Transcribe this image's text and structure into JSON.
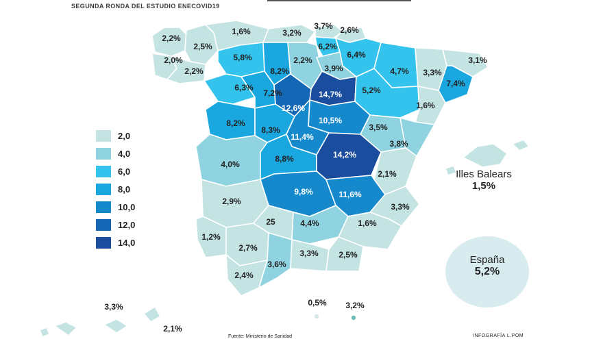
{
  "subtitle": "SEGUNDA RONDA DEL ESTUDIO ENECOVID19",
  "legend": [
    {
      "value": "2,0",
      "color": "#c4e3e3"
    },
    {
      "value": "4,0",
      "color": "#8fd2e0"
    },
    {
      "value": "6,0",
      "color": "#33c3ec"
    },
    {
      "value": "8,0",
      "color": "#1aa7e0"
    },
    {
      "value": "10,0",
      "color": "#1589cc"
    },
    {
      "value": "12,0",
      "color": "#1467b4"
    },
    {
      "value": "14,0",
      "color": "#1b4d9e"
    }
  ],
  "provinces": [
    {
      "name": "A Coruña",
      "value": "2,2%",
      "color": "#c4e3e3"
    },
    {
      "name": "Lugo",
      "value": "2,5%",
      "color": "#c4e3e3"
    },
    {
      "name": "Pontevedra",
      "value": "2,0%",
      "color": "#c4e3e3"
    },
    {
      "name": "Ourense",
      "value": "2,2%",
      "color": "#c4e3e3"
    },
    {
      "name": "Asturias",
      "value": "1,6%",
      "color": "#c4e3e3"
    },
    {
      "name": "Cantabria",
      "value": "3,2%",
      "color": "#c4e3e3"
    },
    {
      "name": "Bizkaia",
      "value": "3,7%",
      "color": "#c4e3e3"
    },
    {
      "name": "Gipuzkoa",
      "value": "2,6%",
      "color": "#c4e3e3"
    },
    {
      "name": "Álava",
      "value": "6,2%",
      "color": "#33c3ec"
    },
    {
      "name": "Navarra",
      "value": "6,4%",
      "color": "#33c3ec"
    },
    {
      "name": "León",
      "value": "5,8%",
      "color": "#33c3ec"
    },
    {
      "name": "Palencia",
      "value": "8,2%",
      "color": "#1aa7e0"
    },
    {
      "name": "Burgos",
      "value": "2,2%",
      "color": "#8fd2e0"
    },
    {
      "name": "La Rioja",
      "value": "3,9%",
      "color": "#8fd2e0"
    },
    {
      "name": "Huesca",
      "value": "4,7%",
      "color": "#33c3ec"
    },
    {
      "name": "Lleida",
      "value": "3,3%",
      "color": "#c4e3e3"
    },
    {
      "name": "Girona",
      "value": "3,1%",
      "color": "#c4e3e3"
    },
    {
      "name": "Barcelona",
      "value": "7,4%",
      "color": "#1aa7e0"
    },
    {
      "name": "Zamora",
      "value": "6,3%",
      "color": "#33c3ec"
    },
    {
      "name": "Valladolid",
      "value": "7,2%",
      "color": "#1aa7e0"
    },
    {
      "name": "Soria",
      "value": "14,7%",
      "color": "#1b4d9e"
    },
    {
      "name": "Zaragoza",
      "value": "5,2%",
      "color": "#33c3ec"
    },
    {
      "name": "Tarragona",
      "value": "1,6%",
      "color": "#c4e3e3"
    },
    {
      "name": "Segovia",
      "value": "12,6%",
      "color": "#1467b4"
    },
    {
      "name": "Guadalajara",
      "value": "10,5%",
      "color": "#1589cc"
    },
    {
      "name": "Salamanca",
      "value": "8,2%",
      "color": "#1aa7e0"
    },
    {
      "name": "Ávila",
      "value": "8,3%",
      "color": "#1aa7e0"
    },
    {
      "name": "Madrid",
      "value": "11,4%",
      "color": "#1589cc"
    },
    {
      "name": "Teruel",
      "value": "3,5%",
      "color": "#8fd2e0"
    },
    {
      "name": "Castellón",
      "value": "3,8%",
      "color": "#8fd2e0"
    },
    {
      "name": "Cuenca",
      "value": "14,2%",
      "color": "#1b4d9e"
    },
    {
      "name": "Cáceres",
      "value": "4,0%",
      "color": "#8fd2e0"
    },
    {
      "name": "Toledo",
      "value": "8,8%",
      "color": "#1aa7e0"
    },
    {
      "name": "Valencia",
      "value": "2,1%",
      "color": "#c4e3e3"
    },
    {
      "name": "Badajoz",
      "value": "2,9%",
      "color": "#c4e3e3"
    },
    {
      "name": "Ciudad Real",
      "value": "9,8%",
      "color": "#1589cc"
    },
    {
      "name": "Albacete",
      "value": "11,6%",
      "color": "#1589cc"
    },
    {
      "name": "Alicante",
      "value": "3,3%",
      "color": "#c4e3e3"
    },
    {
      "name": "Huelva",
      "value": "1,2%",
      "color": "#c4e3e3"
    },
    {
      "name": "Córdoba",
      "value": "25",
      "color": "#c4e3e3"
    },
    {
      "name": "Jaén",
      "value": "4,4%",
      "color": "#8fd2e0"
    },
    {
      "name": "Murcia",
      "value": "1,6%",
      "color": "#c4e3e3"
    },
    {
      "name": "Sevilla",
      "value": "2,7%",
      "color": "#c4e3e3"
    },
    {
      "name": "Granada",
      "value": "3,3%",
      "color": "#c4e3e3"
    },
    {
      "name": "Almería",
      "value": "2,5%",
      "color": "#c4e3e3"
    },
    {
      "name": "Cádiz",
      "value": "2,4%",
      "color": "#c4e3e3"
    },
    {
      "name": "Málaga",
      "value": "3,6%",
      "color": "#8fd2e0"
    },
    {
      "name": "Ceuta",
      "value": "0,5%",
      "color": "#d5e8e8"
    },
    {
      "name": "Melilla",
      "value": "3,2%",
      "color": "#6fbcb8"
    },
    {
      "name": "Las Palmas",
      "value": "3,3%",
      "color": "#c4e3e3"
    },
    {
      "name": "Santa Cruz de Tenerife",
      "value": "2,1%",
      "color": "#c4e3e3"
    }
  ],
  "baleares": {
    "name": "Illes Balears",
    "value": "1,5%",
    "color": "#c4e3e3"
  },
  "espana": {
    "name": "España",
    "value": "5,2%",
    "color": "#d8ebef"
  },
  "footer": {
    "source": "Fuente: Ministerio de Sanidad",
    "credit": "INFOGRAFÍA L.POM"
  }
}
